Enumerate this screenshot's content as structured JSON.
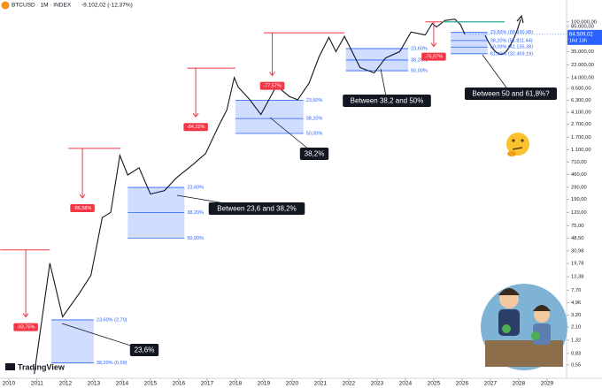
{
  "chart_data": {
    "type": "line",
    "symbol": "BTCUSD · 1M · INDEX",
    "change": "-9.102,02 (-12,37%)",
    "last_price": {
      "value": 64509.02,
      "label": "64.509,02"
    },
    "countdown": "16d 13h",
    "log_scale": true,
    "grid": false,
    "color": "#131722",
    "x": [
      2010.9,
      2011.45,
      2011.9,
      2012.5,
      2012.9,
      2013.3,
      2013.6,
      2013.92,
      2014.2,
      2014.6,
      2015.0,
      2015.5,
      2015.9,
      2016.5,
      2016.95,
      2017.4,
      2017.7,
      2017.96,
      2018.1,
      2018.5,
      2018.9,
      2019.45,
      2019.9,
      2020.2,
      2020.6,
      2020.95,
      2021.3,
      2021.55,
      2021.85,
      2022.4,
      2022.9,
      2023.3,
      2023.8,
      2024.2,
      2024.7,
      2024.95,
      2025.1,
      2025.4,
      2025.75,
      2025.95,
      2026.1
    ],
    "values": [
      0.4,
      20,
      3,
      7,
      13,
      100,
      120,
      900,
      450,
      580,
      230,
      260,
      400,
      650,
      960,
      2500,
      4500,
      14000,
      10000,
      6500,
      3800,
      10500,
      7200,
      6400,
      11500,
      29000,
      58000,
      35000,
      60000,
      20000,
      16500,
      28000,
      35000,
      70000,
      63000,
      95000,
      84000,
      105000,
      110000,
      90000,
      64509.02
    ],
    "xlim": [
      2009.69,
      2029.69
    ],
    "xticks": [
      2010,
      2011,
      2012,
      2013,
      2014,
      2015,
      2016,
      2017,
      2018,
      2019,
      2020,
      2021,
      2022,
      2023,
      2024,
      2025,
      2026,
      2027,
      2028,
      2029
    ],
    "ylim": [
      0.344,
      168700
    ],
    "yticks": [
      {
        "value": 100000,
        "label": "100.000,00"
      },
      {
        "value": 85000,
        "label": "85.000,00"
      },
      {
        "value": 50000,
        "label": "50.000,00"
      },
      {
        "value": 35000,
        "label": "35.000,00"
      },
      {
        "value": 22000,
        "label": "22.000,00"
      },
      {
        "value": 14000,
        "label": "14.000,00"
      },
      {
        "value": 9500,
        "label": "9.500,00"
      },
      {
        "value": 6300,
        "label": "6.300,00"
      },
      {
        "value": 4100,
        "label": "4.100,00"
      },
      {
        "value": 2700,
        "label": "2.700,00"
      },
      {
        "value": 1700,
        "label": "1.700,00"
      },
      {
        "value": 1100,
        "label": "1.100,00"
      },
      {
        "value": 710,
        "label": "710,00"
      },
      {
        "value": 460,
        "label": "460,00"
      },
      {
        "value": 290,
        "label": "290,00"
      },
      {
        "value": 190,
        "label": "190,00"
      },
      {
        "value": 120,
        "label": "120,00"
      },
      {
        "value": 75,
        "label": "75,00"
      },
      {
        "value": 48.5,
        "label": "48,50"
      },
      {
        "value": 30.98,
        "label": "30,98"
      },
      {
        "value": 19.78,
        "label": "19,78"
      },
      {
        "value": 12.38,
        "label": "12,38"
      },
      {
        "value": 7.7,
        "label": "7,70"
      },
      {
        "value": 4.96,
        "label": "4,96"
      },
      {
        "value": 3.2,
        "label": "3,20"
      },
      {
        "value": 2.1,
        "label": "2,10"
      },
      {
        "value": 1.32,
        "label": "1,32"
      },
      {
        "value": 0.83,
        "label": "0,83"
      },
      {
        "value": 0.55,
        "label": "0,55"
      }
    ],
    "fib_zones": [
      {
        "x": [
          2011.5,
          2013.0
        ],
        "levels": [
          {
            "value": 2.7,
            "label": "23,60% (2,70)"
          },
          {
            "value": 0.59,
            "label": "38,20% (0,59)"
          }
        ]
      },
      {
        "x": [
          2014.2,
          2016.2
        ],
        "levels": [
          {
            "value": 290,
            "label": "23,60%"
          },
          {
            "value": 120,
            "label": "38,20%"
          },
          {
            "value": 48.5,
            "label": "50,00%"
          }
        ]
      },
      {
        "x": [
          2018.0,
          2020.4
        ],
        "levels": [
          {
            "value": 6300,
            "label": "23,60%"
          },
          {
            "value": 3300,
            "label": "38,20%"
          },
          {
            "value": 1950,
            "label": "50,00%"
          }
        ]
      },
      {
        "x": [
          2021.9,
          2024.1
        ],
        "levels": [
          {
            "value": 39000,
            "label": "23,60%"
          },
          {
            "value": 26000,
            "label": "38,20%"
          },
          {
            "value": 17800,
            "label": "50,00%"
          }
        ]
      },
      {
        "x": [
          2025.6,
          2026.9
        ],
        "levels": [
          {
            "value": 68930.98,
            "label": "23,60% (68.930,98)"
          },
          {
            "value": 51811.44,
            "label": "38,20% (51.811,44)"
          },
          {
            "value": 41135.38,
            "label": "50,00% (41.135,38)"
          },
          {
            "value": 32459.19,
            "label": "61,80% (32.459,19)"
          }
        ]
      }
    ],
    "drawdowns": [
      {
        "x": [
          2009.7,
          2011.45
        ],
        "arrow_x": 2010.6,
        "from": 32,
        "to": 3,
        "label": "-93,75%"
      },
      {
        "x": [
          2012.1,
          2013.95
        ],
        "arrow_x": 2012.6,
        "from": 1150,
        "to": 200,
        "label": "-86,58%"
      },
      {
        "x": [
          2016.3,
          2018.0
        ],
        "arrow_x": 2016.6,
        "from": 19500,
        "to": 3500,
        "label": "-84,22%"
      },
      {
        "x": [
          2019.0,
          2021.85
        ],
        "arrow_x": 2019.3,
        "from": 68000,
        "to": 15000,
        "label": "-77,57%"
      },
      {
        "x": [
          2024.7,
          2025.3
        ],
        "arrow_x": 2025.0,
        "from": 100000,
        "to": 42000,
        "label": "-76,97%"
      }
    ],
    "target": {
      "x": [
        2025.3,
        2027.5
      ],
      "value": 100000
    },
    "callouts": [
      "23,6%",
      "Between 23,6 and 38,2%",
      "38,2%",
      "Between 38,2 and 50%",
      "Between 50 and 61,8%?"
    ],
    "logo": "TradingView"
  }
}
